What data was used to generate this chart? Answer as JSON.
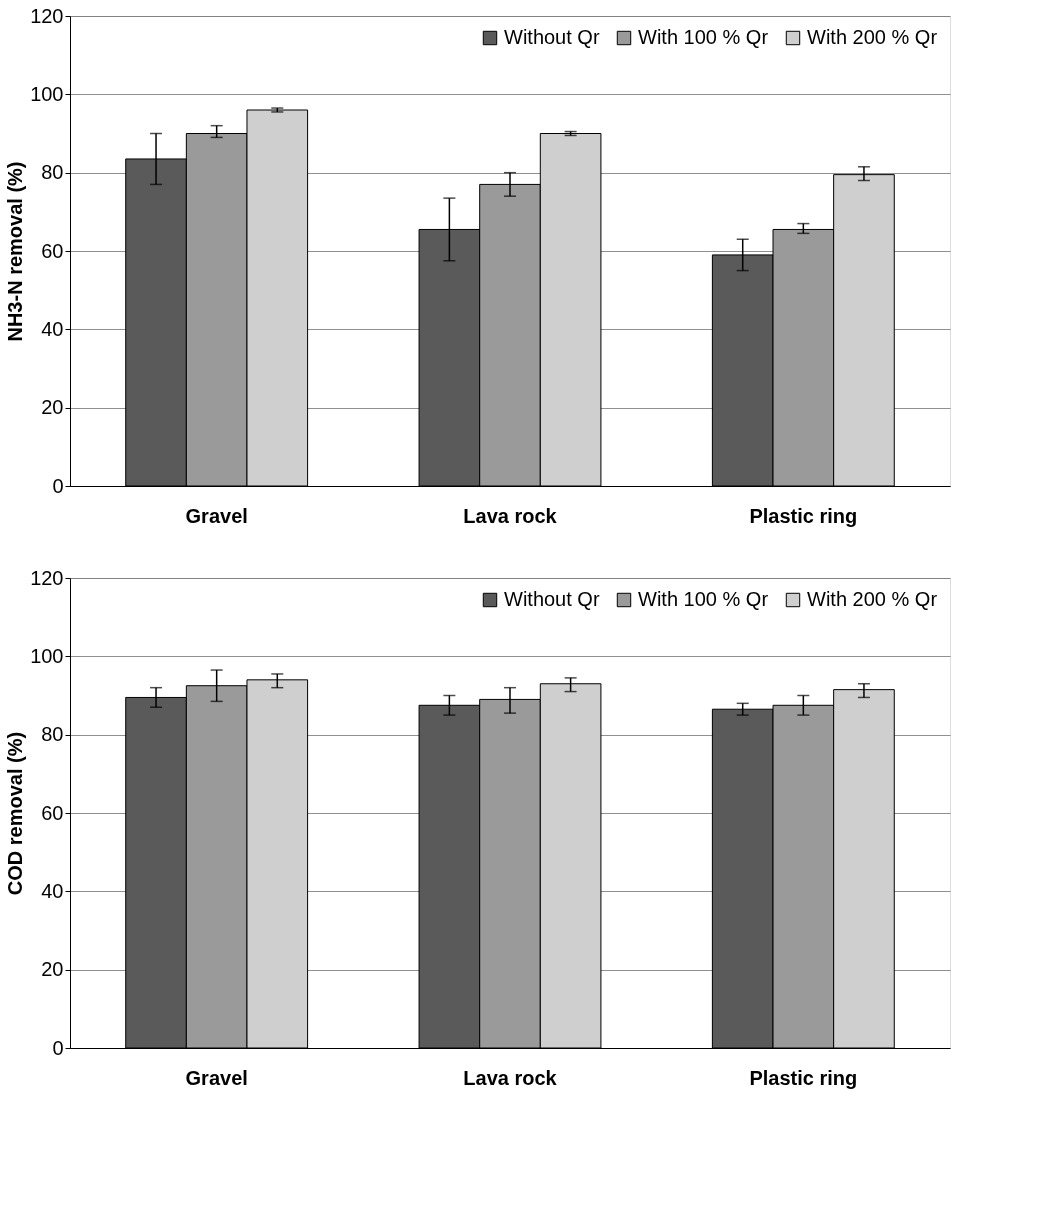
{
  "chart_data": [
    {
      "type": "bar",
      "ylabel": "NH3-N removal (%)",
      "categories": [
        "Gravel",
        "Lava rock",
        "Plastic ring"
      ],
      "ylim": [
        0,
        120
      ],
      "yticks": [
        0,
        20,
        40,
        60,
        80,
        100,
        120
      ],
      "grid": "y",
      "legend": "top right",
      "series": [
        {
          "name": "Without Qr",
          "color": "#5a5a5a",
          "values": [
            83.5,
            65.5,
            59
          ],
          "errors": [
            [
              77,
              90
            ],
            [
              57.5,
              73.5
            ],
            [
              55,
              63
            ]
          ]
        },
        {
          "name": "With 100 % Qr",
          "color": "#9a9a9a",
          "values": [
            90,
            77,
            65.5
          ],
          "errors": [
            [
              89,
              92
            ],
            [
              74,
              80
            ],
            [
              64.5,
              67
            ]
          ]
        },
        {
          "name": "With 200 % Qr",
          "color": "#cfcfcf",
          "values": [
            96,
            90,
            79.5
          ],
          "errors": [
            [
              95.5,
              96.5
            ],
            [
              89.5,
              90.5
            ],
            [
              78,
              81.5
            ]
          ]
        }
      ]
    },
    {
      "type": "bar",
      "ylabel": "COD removal (%)",
      "categories": [
        "Gravel",
        "Lava rock",
        "Plastic ring"
      ],
      "ylim": [
        0,
        120
      ],
      "yticks": [
        0,
        20,
        40,
        60,
        80,
        100,
        120
      ],
      "grid": "y",
      "legend": "top right",
      "series": [
        {
          "name": "Without Qr",
          "color": "#5a5a5a",
          "values": [
            89.5,
            87.5,
            86.5
          ],
          "errors": [
            [
              87,
              92
            ],
            [
              85,
              90
            ],
            [
              85,
              88
            ]
          ]
        },
        {
          "name": "With 100 % Qr",
          "color": "#9a9a9a",
          "values": [
            92.5,
            89,
            87.5
          ],
          "errors": [
            [
              88.5,
              96.5
            ],
            [
              85.5,
              92
            ],
            [
              85,
              90
            ]
          ]
        },
        {
          "name": "With 200 % Qr",
          "color": "#cfcfcf",
          "values": [
            94,
            93,
            91.5
          ],
          "errors": [
            [
              92,
              95.5
            ],
            [
              91,
              94.5
            ],
            [
              89.5,
              93
            ]
          ]
        }
      ]
    }
  ]
}
